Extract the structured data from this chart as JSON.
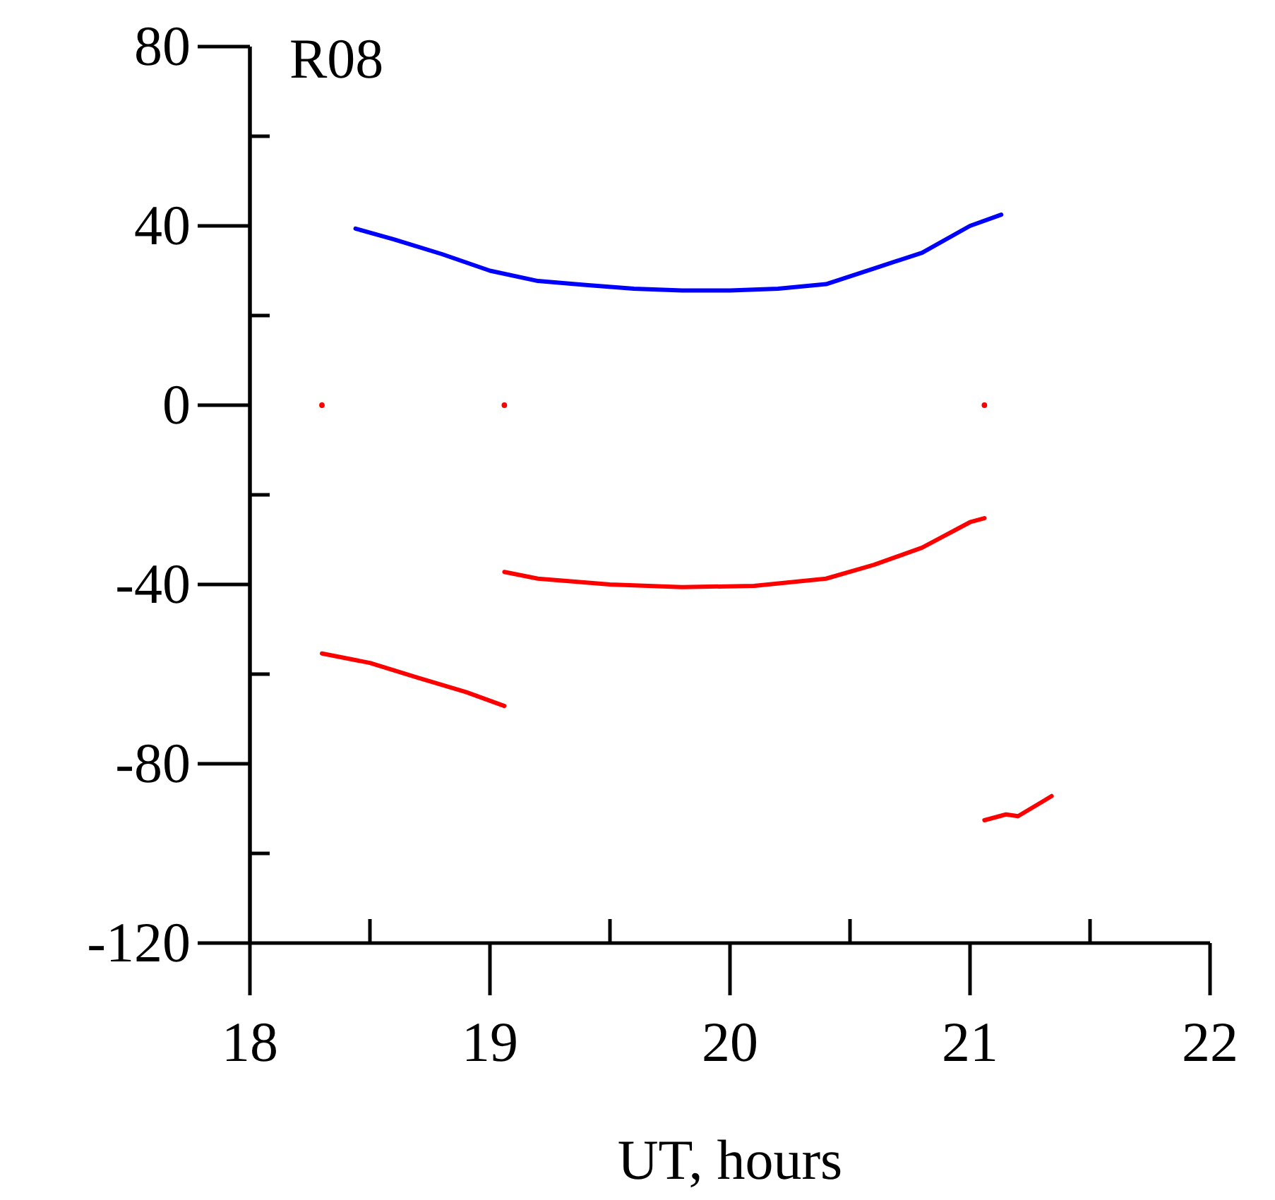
{
  "chart_data": {
    "type": "line",
    "title": "R08",
    "xlabel": "UT, hours",
    "xlim": [
      18,
      22
    ],
    "ylim": [
      -120,
      80
    ],
    "xticks": [
      18,
      19,
      20,
      21,
      22
    ],
    "yticks": [
      -120,
      {
        "value": -100,
        "label": null
      },
      -80,
      {
        "value": -60,
        "label": null
      },
      -40,
      {
        "value": -20,
        "label": null
      },
      0,
      {
        "value": 20,
        "label": null
      },
      40,
      {
        "value": 60,
        "label": null
      },
      80
    ],
    "grid": false,
    "line_style": "solid",
    "marker": "none",
    "series": [
      {
        "color": "#0000ff",
        "x": [
          18.44,
          18.6,
          18.8,
          19.0,
          19.2,
          19.4,
          19.6,
          19.8,
          20.0,
          20.2,
          20.4,
          20.6,
          20.8,
          21.0,
          21.13
        ],
        "values": [
          39.4,
          37,
          33.7,
          30,
          27.7,
          26.8,
          26,
          25.6,
          25.6,
          26,
          27,
          30.5,
          34,
          40,
          42.5
        ]
      },
      {
        "color": "#ff0000",
        "x": [
          18.3,
          18.5,
          18.7,
          18.9,
          19.06
        ],
        "values": [
          -55.4,
          -57.5,
          -60.8,
          -64,
          -67.1
        ]
      },
      {
        "color": "#ff0000",
        "x": [
          19.06,
          19.2,
          19.5,
          19.8,
          20.1,
          20.4,
          20.6,
          20.8,
          21.0,
          21.06
        ],
        "values": [
          -37.2,
          -38.7,
          -40,
          -40.6,
          -40.3,
          -38.7,
          -35.6,
          -31.8,
          -26.1,
          -25.2
        ]
      },
      {
        "color": "#ff0000",
        "x": [
          21.06,
          21.15,
          21.2,
          21.3,
          21.34
        ],
        "values": [
          -92.6,
          -91.3,
          -91.7,
          -88.5,
          -87.2
        ]
      },
      {
        "type": "scatter",
        "color": "#ff0000",
        "marker": "circle",
        "x": [
          18.3,
          19.06,
          21.06
        ],
        "values": [
          0,
          0,
          0
        ]
      }
    ]
  }
}
